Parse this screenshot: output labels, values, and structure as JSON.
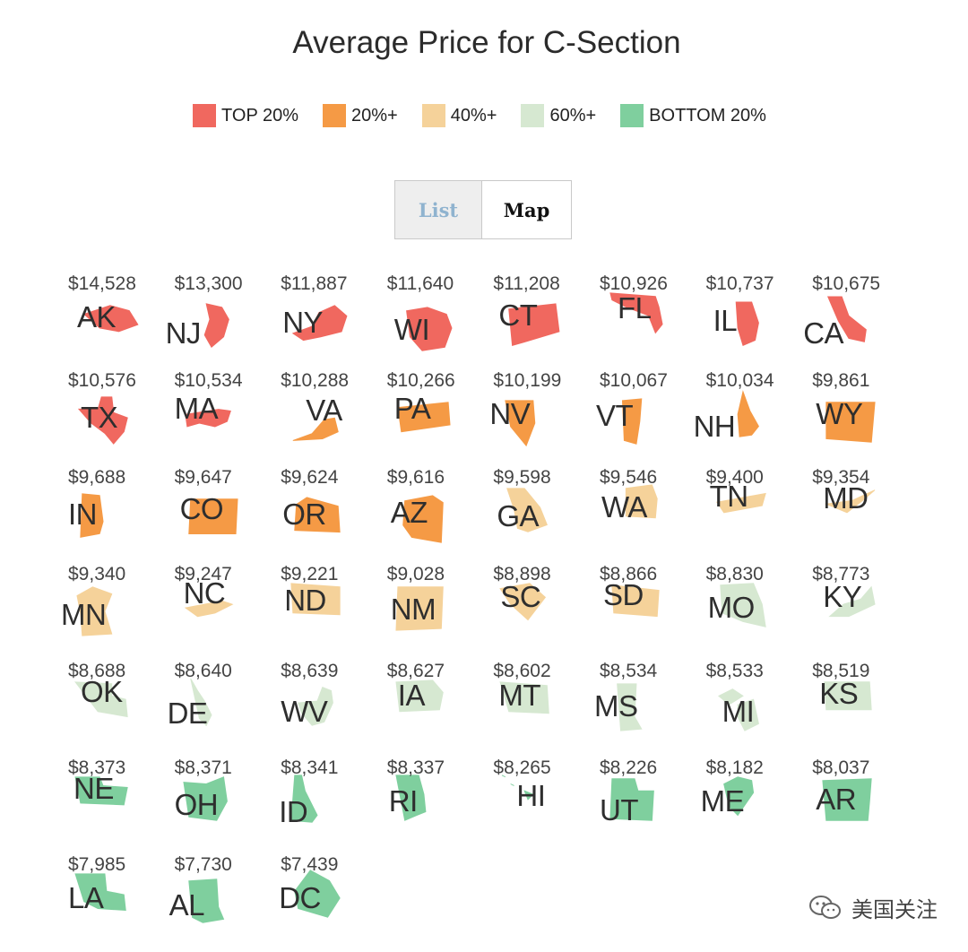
{
  "title": "Average Price for C-Section",
  "legend": [
    {
      "label": "TOP 20%",
      "color": "#f0685f"
    },
    {
      "label": "20%+",
      "color": "#f59a45"
    },
    {
      "label": "40%+",
      "color": "#f5d29a"
    },
    {
      "label": "60%+",
      "color": "#d6e8d1"
    },
    {
      "label": "BOTTOM 20%",
      "color": "#7fcf9e"
    }
  ],
  "toggle": {
    "list_label": "List",
    "map_label": "Map",
    "active": "Map"
  },
  "watermark": "美国关注",
  "chart_data": {
    "type": "table",
    "title": "Average Price for C-Section",
    "columns": [
      "state",
      "price",
      "tier"
    ],
    "rows": [
      {
        "state": "AK",
        "price": "$14,528",
        "tier": "TOP 20%"
      },
      {
        "state": "NJ",
        "price": "$13,300",
        "tier": "TOP 20%"
      },
      {
        "state": "NY",
        "price": "$11,887",
        "tier": "TOP 20%"
      },
      {
        "state": "WI",
        "price": "$11,640",
        "tier": "TOP 20%"
      },
      {
        "state": "CT",
        "price": "$11,208",
        "tier": "TOP 20%"
      },
      {
        "state": "FL",
        "price": "$10,926",
        "tier": "TOP 20%"
      },
      {
        "state": "IL",
        "price": "$10,737",
        "tier": "TOP 20%"
      },
      {
        "state": "CA",
        "price": "$10,675",
        "tier": "TOP 20%"
      },
      {
        "state": "TX",
        "price": "$10,576",
        "tier": "TOP 20%"
      },
      {
        "state": "MA",
        "price": "$10,534",
        "tier": "TOP 20%"
      },
      {
        "state": "VA",
        "price": "$10,288",
        "tier": "20%+"
      },
      {
        "state": "PA",
        "price": "$10,266",
        "tier": "20%+"
      },
      {
        "state": "NV",
        "price": "$10,199",
        "tier": "20%+"
      },
      {
        "state": "VT",
        "price": "$10,067",
        "tier": "20%+"
      },
      {
        "state": "NH",
        "price": "$10,034",
        "tier": "20%+"
      },
      {
        "state": "WY",
        "price": "$9,861",
        "tier": "20%+"
      },
      {
        "state": "IN",
        "price": "$9,688",
        "tier": "20%+"
      },
      {
        "state": "CO",
        "price": "$9,647",
        "tier": "20%+"
      },
      {
        "state": "OR",
        "price": "$9,624",
        "tier": "20%+"
      },
      {
        "state": "AZ",
        "price": "$9,616",
        "tier": "20%+"
      },
      {
        "state": "GA",
        "price": "$9,598",
        "tier": "40%+"
      },
      {
        "state": "WA",
        "price": "$9,546",
        "tier": "40%+"
      },
      {
        "state": "TN",
        "price": "$9,400",
        "tier": "40%+"
      },
      {
        "state": "MD",
        "price": "$9,354",
        "tier": "40%+"
      },
      {
        "state": "MN",
        "price": "$9,340",
        "tier": "40%+"
      },
      {
        "state": "NC",
        "price": "$9,247",
        "tier": "40%+"
      },
      {
        "state": "ND",
        "price": "$9,221",
        "tier": "40%+"
      },
      {
        "state": "NM",
        "price": "$9,028",
        "tier": "40%+"
      },
      {
        "state": "SC",
        "price": "$8,898",
        "tier": "40%+"
      },
      {
        "state": "SD",
        "price": "$8,866",
        "tier": "40%+"
      },
      {
        "state": "MO",
        "price": "$8,830",
        "tier": "60%+"
      },
      {
        "state": "KY",
        "price": "$8,773",
        "tier": "60%+"
      },
      {
        "state": "OK",
        "price": "$8,688",
        "tier": "60%+"
      },
      {
        "state": "DE",
        "price": "$8,640",
        "tier": "60%+"
      },
      {
        "state": "WV",
        "price": "$8,639",
        "tier": "60%+"
      },
      {
        "state": "IA",
        "price": "$8,627",
        "tier": "60%+"
      },
      {
        "state": "MT",
        "price": "$8,602",
        "tier": "60%+"
      },
      {
        "state": "MS",
        "price": "$8,534",
        "tier": "60%+"
      },
      {
        "state": "MI",
        "price": "$8,533",
        "tier": "60%+"
      },
      {
        "state": "KS",
        "price": "$8,519",
        "tier": "60%+"
      },
      {
        "state": "NE",
        "price": "$8,373",
        "tier": "BOTTOM 20%"
      },
      {
        "state": "OH",
        "price": "$8,371",
        "tier": "BOTTOM 20%"
      },
      {
        "state": "ID",
        "price": "$8,341",
        "tier": "BOTTOM 20%"
      },
      {
        "state": "RI",
        "price": "$8,337",
        "tier": "BOTTOM 20%"
      },
      {
        "state": "HI",
        "price": "$8,265",
        "tier": "BOTTOM 20%"
      },
      {
        "state": "UT",
        "price": "$8,226",
        "tier": "BOTTOM 20%"
      },
      {
        "state": "ME",
        "price": "$8,182",
        "tier": "BOTTOM 20%"
      },
      {
        "state": "AR",
        "price": "$8,037",
        "tier": "BOTTOM 20%"
      },
      {
        "state": "LA",
        "price": "$7,985",
        "tier": "BOTTOM 20%"
      },
      {
        "state": "AL",
        "price": "$7,730",
        "tier": "BOTTOM 20%"
      },
      {
        "state": "DC",
        "price": "$7,439",
        "tier": "BOTTOM 20%"
      }
    ]
  }
}
